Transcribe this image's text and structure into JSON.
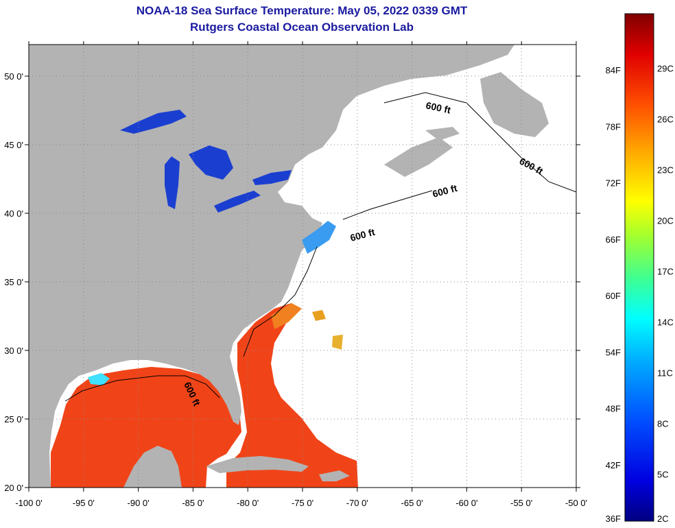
{
  "title": "NOAA-18 Sea Surface Temperature:  May 05, 2022 0339 GMT",
  "subtitle": "Rutgers Coastal Ocean Observation Lab",
  "lon_labels": [
    "-100 0'",
    "-95 0'",
    "-90 0'",
    "-85 0'",
    "-80 0'",
    "-75 0'",
    "-70 0'",
    "-65 0'",
    "-60 0'",
    "-55 0'",
    "-50 0'"
  ],
  "lon_values": [
    -100,
    -95,
    -90,
    -85,
    -80,
    -75,
    -70,
    -65,
    -60,
    -55,
    -50
  ],
  "lat_labels": [
    "20 0'",
    "25 0'",
    "30 0'",
    "35 0'",
    "40 0'",
    "45 0'",
    "50 0'"
  ],
  "lat_values": [
    20,
    25,
    30,
    35,
    40,
    45,
    50
  ],
  "isobath_label": "600 ft",
  "isobath_labels": [
    "600 ft",
    "600 ft",
    "600 ft",
    "600 ft",
    "600 ft"
  ],
  "colorbar": {
    "fahrenheit_labels": [
      "84F",
      "78F",
      "72F",
      "66F",
      "60F",
      "54F",
      "48F",
      "42F",
      "36F"
    ],
    "fahrenheit_values": [
      84,
      78,
      72,
      66,
      60,
      54,
      48,
      42,
      36
    ],
    "celsius_labels": [
      "29C",
      "26C",
      "23C",
      "20C",
      "17C",
      "14C",
      "11C",
      "8C",
      "5C",
      "2C"
    ],
    "celsius_values": [
      29,
      26,
      23,
      20,
      17,
      14,
      11,
      8,
      5,
      2
    ],
    "colors": [
      "#000080",
      "#0000e0",
      "#0050ff",
      "#00b0ff",
      "#00ffff",
      "#40ff90",
      "#a0ff30",
      "#ffff00",
      "#ffb000",
      "#ff5000",
      "#e00000",
      "#800000"
    ]
  },
  "colors": {
    "land": "#b3b3b3",
    "warm_water": "#f04418",
    "cold_lakes": "#1a3fd0",
    "title": "#1a1aa0"
  }
}
